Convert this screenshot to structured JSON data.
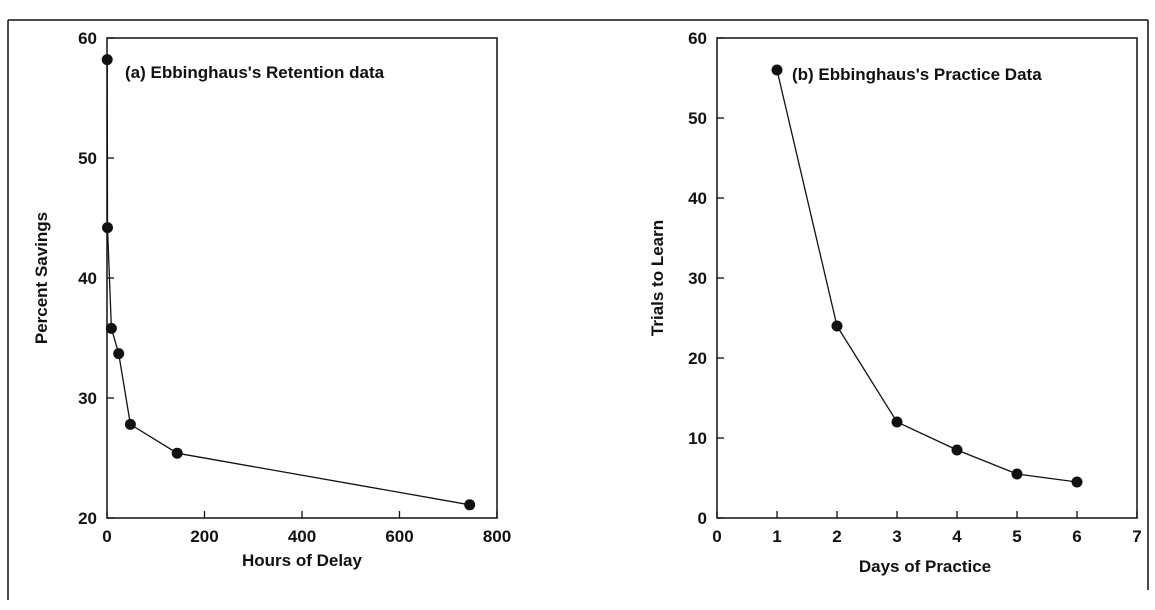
{
  "chart_data": [
    {
      "type": "line",
      "title": "(a) Ebbinghaus's Retention data",
      "xlabel": "Hours of Delay",
      "ylabel": "Percent Savings",
      "xlim": [
        0,
        800
      ],
      "ylim": [
        20,
        60
      ],
      "xticks": [
        0,
        200,
        400,
        600,
        800
      ],
      "xtick_labels": [
        "0",
        "200",
        "400",
        "600",
        "800"
      ],
      "yticks": [
        20,
        30,
        40,
        50,
        60
      ],
      "ytick_labels": [
        "20",
        "30",
        "40",
        "50",
        "60"
      ],
      "grid": false,
      "series": [
        {
          "x": [
            0.33,
            1,
            9,
            24,
            48,
            144,
            744
          ],
          "y": [
            58.2,
            44.2,
            35.8,
            33.7,
            27.8,
            25.4,
            21.1
          ]
        }
      ]
    },
    {
      "type": "line",
      "title": "(b) Ebbinghaus's Practice Data",
      "xlabel": "Days of Practice",
      "ylabel": "Trials to Learn",
      "xlim": [
        0,
        7
      ],
      "ylim": [
        0,
        60
      ],
      "xticks": [
        0,
        1,
        2,
        3,
        4,
        5,
        6,
        7
      ],
      "xtick_labels": [
        "0",
        "1",
        "2",
        "3",
        "4",
        "5",
        "6",
        "7"
      ],
      "yticks": [
        0,
        10,
        20,
        30,
        40,
        50,
        60
      ],
      "ytick_labels": [
        "0",
        "10",
        "20",
        "30",
        "40",
        "50",
        "60"
      ],
      "grid": false,
      "series": [
        {
          "x": [
            1,
            2,
            3,
            4,
            5,
            6
          ],
          "y": [
            56,
            24,
            12,
            8.5,
            5.5,
            4.5
          ]
        }
      ]
    }
  ],
  "colors": {
    "ink": "#111111",
    "background": "#ffffff"
  }
}
